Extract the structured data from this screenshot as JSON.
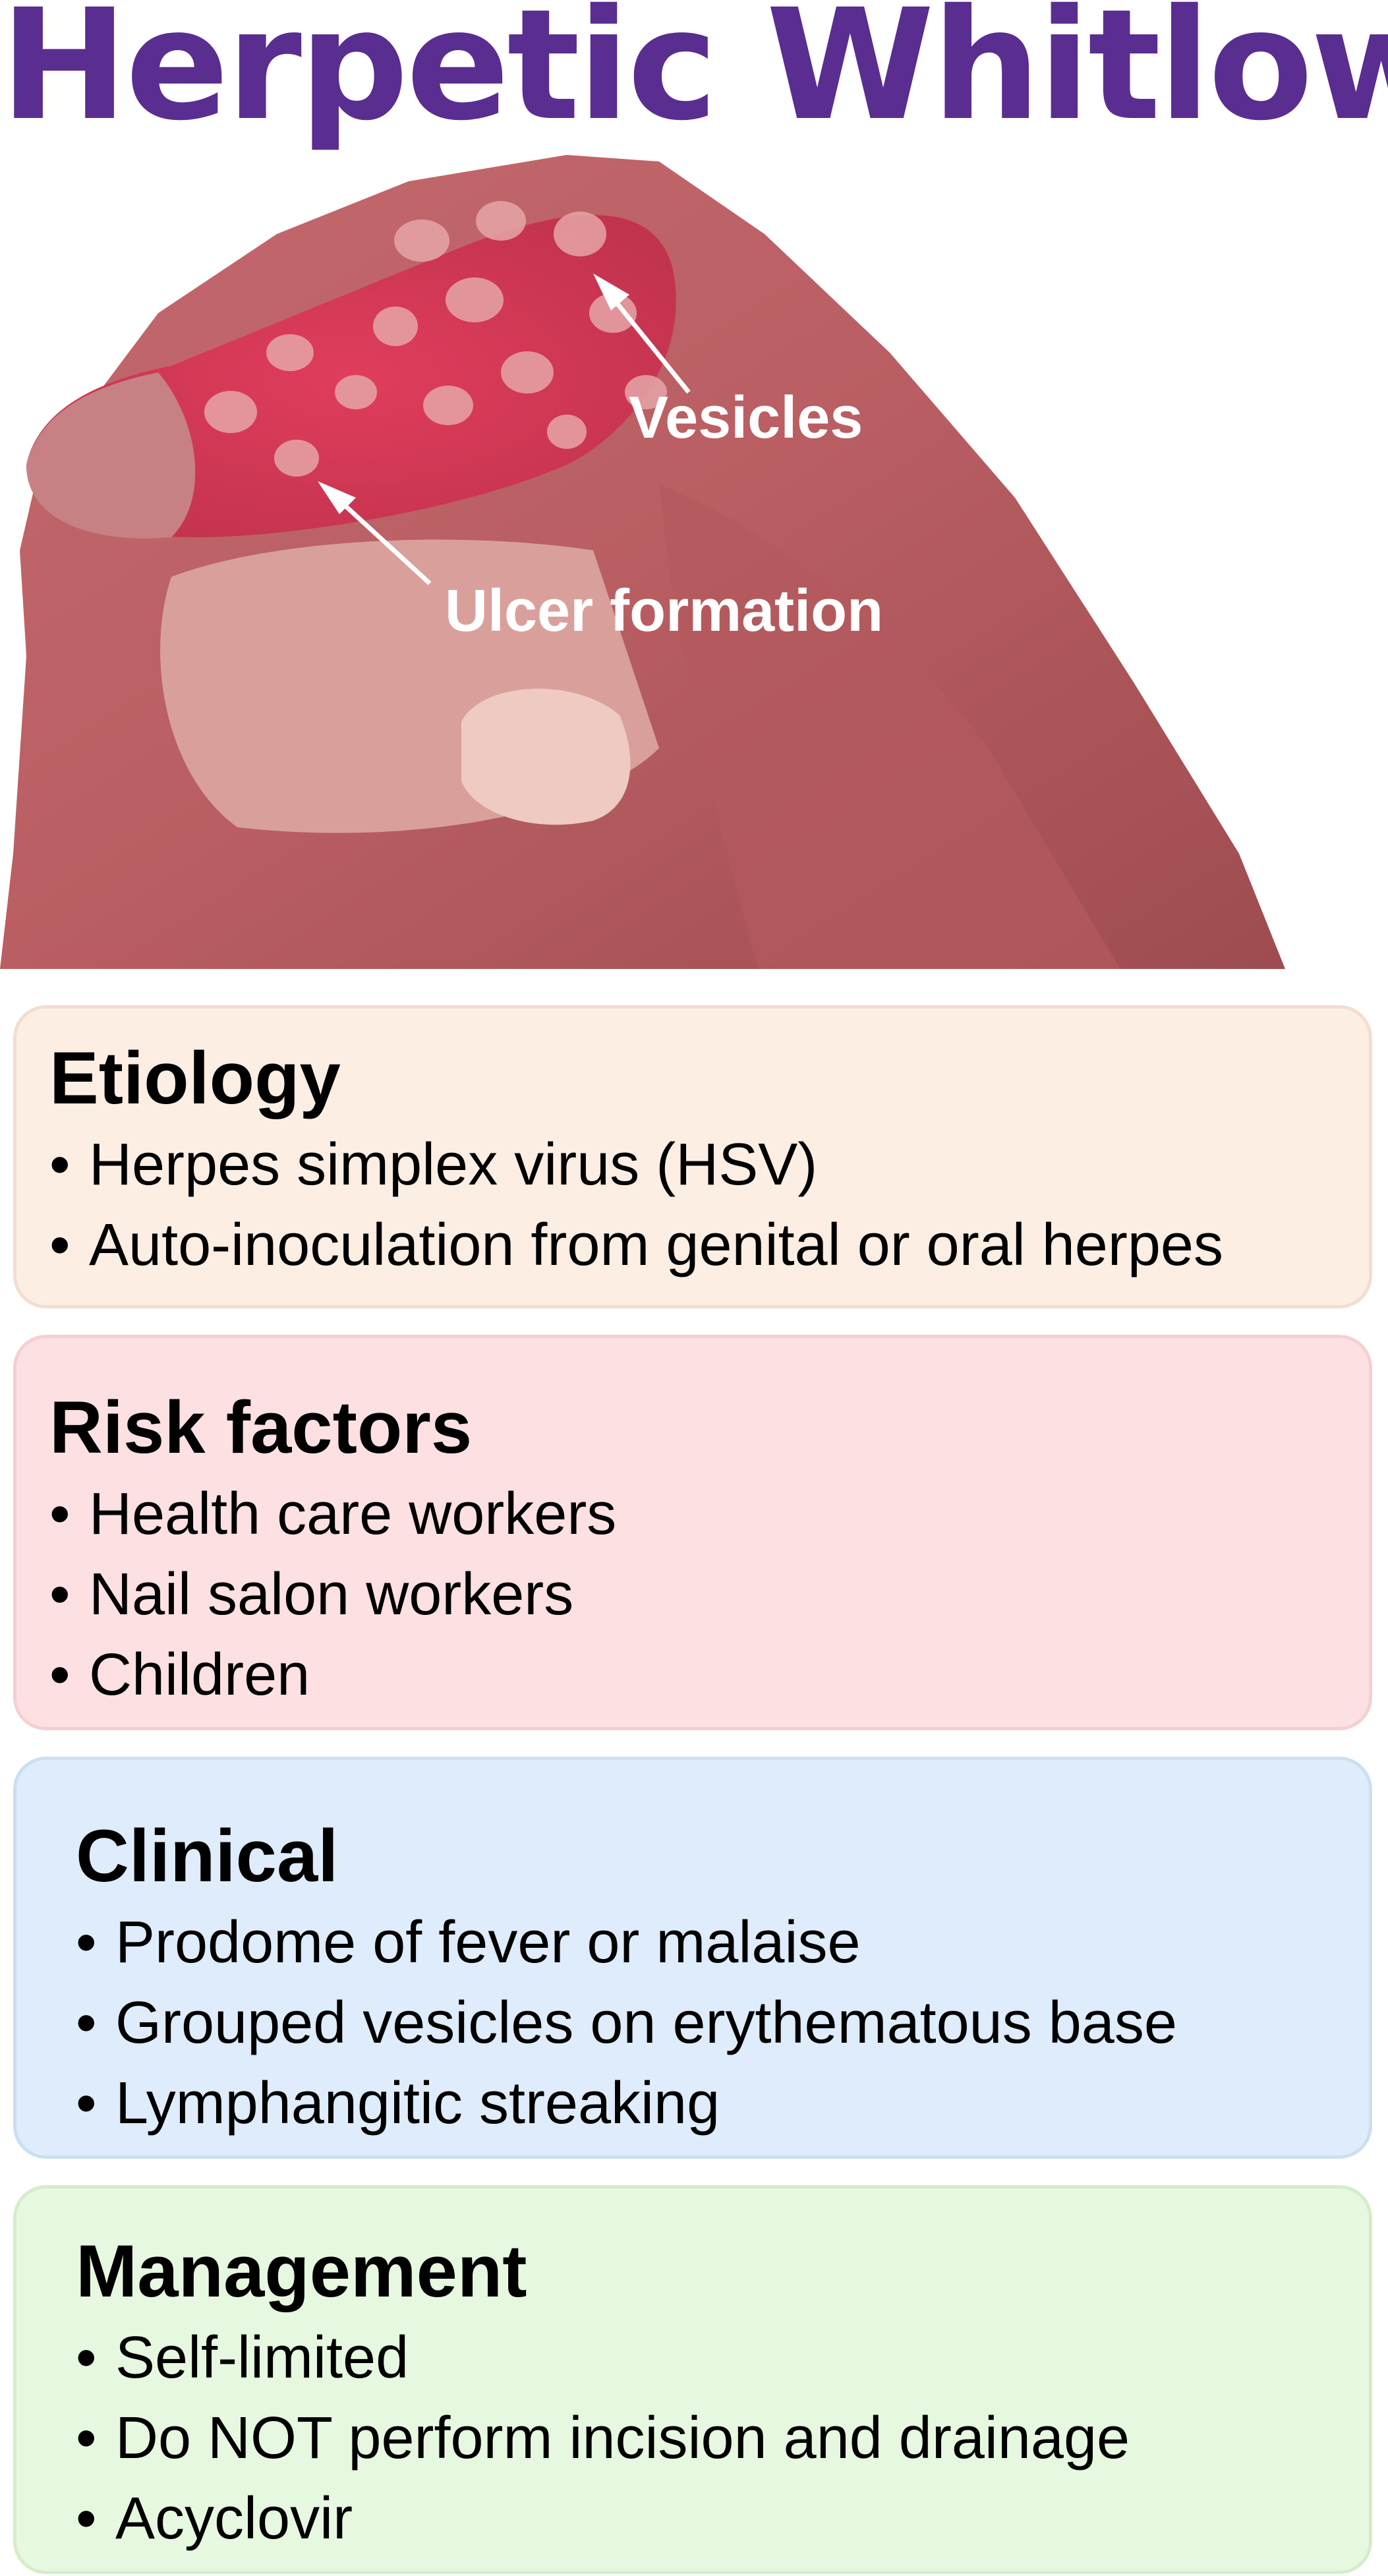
{
  "title": "Herpetic Whitlow",
  "colors": {
    "title": "#5a2d91",
    "etiology_bg": "#fdeee3",
    "etiology_border": "#f3ddcf",
    "risk_bg": "#fde0e2",
    "risk_border": "#f5cfd2",
    "clinical_bg": "#deecfb",
    "clinical_border": "#cadff2",
    "management_bg": "#e6f8df",
    "management_border": "#d3edc9"
  },
  "photo": {
    "labels": {
      "vesicles": "Vesicles",
      "ulcer": "Ulcer formation"
    }
  },
  "sections": [
    {
      "heading": "Etiology",
      "items": [
        "Herpes simplex virus (HSV)",
        "Auto-inoculation from genital or oral herpes"
      ]
    },
    {
      "heading": "Risk factors",
      "items": [
        "Health care workers",
        "Nail salon workers",
        "Children"
      ]
    },
    {
      "heading": "Clinical",
      "items": [
        "Prodome of fever or malaise",
        "Grouped vesicles on erythematous base",
        "Lymphangitic streaking"
      ]
    },
    {
      "heading": "Management",
      "items": [
        "Self-limited",
        "Do NOT perform incision and drainage",
        "Acyclovir"
      ]
    }
  ]
}
